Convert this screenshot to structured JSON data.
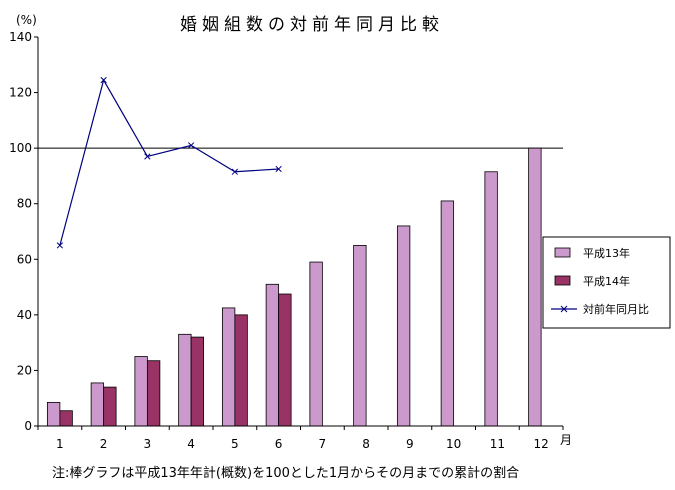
{
  "chart_data": {
    "type": "bar",
    "title": "婚姻組数の対前年同月比較",
    "yunit": "(%)",
    "xunit": "月",
    "categories": [
      "1",
      "2",
      "3",
      "4",
      "5",
      "6",
      "7",
      "8",
      "9",
      "10",
      "11",
      "12"
    ],
    "ylim": [
      0,
      140
    ],
    "yticks": [
      "0",
      "20",
      "40",
      "60",
      "80",
      "100",
      "120",
      "140"
    ],
    "reference_line": 100,
    "series": [
      {
        "name": "平成13年",
        "kind": "bar",
        "color": "#cc99cc",
        "values": [
          8.5,
          15.5,
          25,
          33,
          42.5,
          51,
          59,
          65,
          72,
          81,
          91.5,
          100
        ]
      },
      {
        "name": "平成14年",
        "kind": "bar",
        "color": "#993366",
        "values": [
          5.5,
          14,
          23.5,
          32,
          40,
          47.5,
          null,
          null,
          null,
          null,
          null,
          null
        ]
      },
      {
        "name": "対前年同月比",
        "kind": "line",
        "color": "#000080",
        "values": [
          65,
          124.5,
          97,
          101,
          91.5,
          92.5,
          null,
          null,
          null,
          null,
          null,
          null
        ]
      }
    ],
    "legend_position": "right",
    "note": "注:棒グラフは平成13年年計(概数)を100とした1月からその月までの累計の割合"
  }
}
